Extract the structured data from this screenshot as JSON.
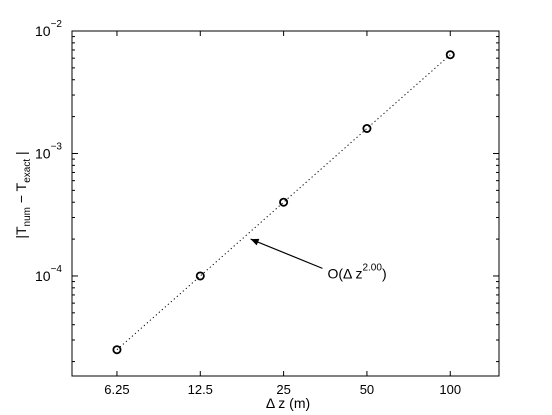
{
  "chart_data": {
    "type": "scatter",
    "xscale": "log",
    "yscale": "log",
    "xlim": [
      4.3,
      150
    ],
    "ylim": [
      1.525e-05,
      0.01
    ],
    "xticks": [
      {
        "value": 6.25,
        "label": "6.25"
      },
      {
        "value": 12.5,
        "label": "12.5"
      },
      {
        "value": 25,
        "label": "25"
      },
      {
        "value": 50,
        "label": "50"
      },
      {
        "value": 100,
        "label": "100"
      }
    ],
    "yticks": [
      {
        "value": 0.0001,
        "mantissa": "10",
        "exp": "−4"
      },
      {
        "value": 0.001,
        "mantissa": "10",
        "exp": "−3"
      },
      {
        "value": 0.01,
        "mantissa": "10",
        "exp": "−2"
      }
    ],
    "xlabel": "Δ z  (m)",
    "ylabel": {
      "prefix": "|T",
      "sub1": "num",
      "mid": " − T",
      "sub2": "exact",
      "suffix": " |"
    },
    "grid": false,
    "series": [
      {
        "marker": "o",
        "x": [
          6.25,
          12.5,
          25,
          50,
          100
        ],
        "y": [
          2.5e-05,
          0.0001,
          0.0004,
          0.0016,
          0.0064
        ]
      }
    ],
    "fit_line": {
      "style": "dotted",
      "x": [
        6.25,
        100
      ],
      "y": [
        2.5e-05,
        0.0064
      ]
    },
    "annotation": {
      "prefix": "O(Δ z",
      "sup": "2.00",
      "suffix": ")",
      "arrow_tip": {
        "x": 19,
        "y": 0.0002
      },
      "text_anchor": {
        "x": 36,
        "y": 0.000105
      }
    }
  }
}
